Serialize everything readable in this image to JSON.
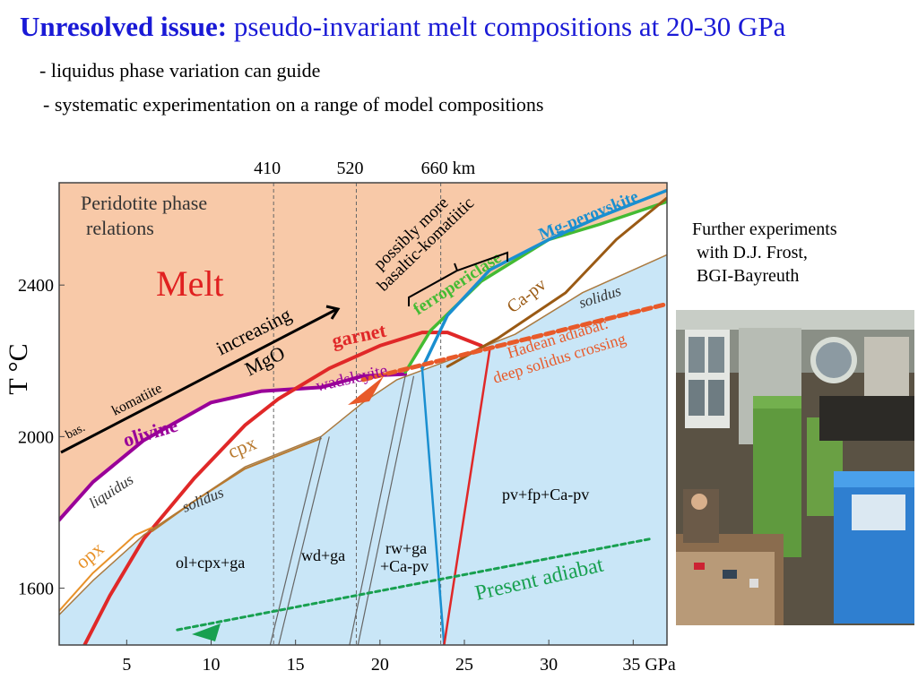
{
  "slide": {
    "title_bold": "Unresolved issue:",
    "title_rest": " pseudo-invariant melt compositions at 20-30 GPa",
    "bullets": [
      "- liquidus phase variation can guide",
      "- systematic experimentation on a range of model compositions"
    ],
    "credit_lines": [
      "Further experiments",
      " with D.J. Frost,",
      " BGI-Bayreuth"
    ]
  },
  "chart_data": {
    "type": "phase_diagram",
    "title": "Peridotite phase relations",
    "title_lines": [
      "Peridotite phase",
      "relations"
    ],
    "ylabel": "T °C",
    "xlim": [
      1,
      37
    ],
    "ylim": [
      1450,
      2670
    ],
    "x_ticks": [
      {
        "value": 5,
        "label": "5"
      },
      {
        "value": 10,
        "label": "10"
      },
      {
        "value": 15,
        "label": "15"
      },
      {
        "value": 20,
        "label": "20"
      },
      {
        "value": 25,
        "label": "25"
      },
      {
        "value": 30,
        "label": "30"
      },
      {
        "value": 35,
        "label": "35 GPa"
      }
    ],
    "y_ticks": [
      {
        "value": 1600,
        "label": "1600"
      },
      {
        "value": 2000,
        "label": "2000"
      },
      {
        "value": 2400,
        "label": "2400"
      }
    ],
    "depth_markers": [
      {
        "pressure": 13.7,
        "label": "410"
      },
      {
        "pressure": 18.6,
        "label": "520"
      },
      {
        "pressure": 23.6,
        "label": "660 km"
      }
    ],
    "colors": {
      "melt_region": "#f8c9a8",
      "subsolidus_region": "#c9e6f7",
      "olivine": "#990099",
      "garnet": "#e02828",
      "cpx": "#b87a30",
      "opx": "#e8922a",
      "ferropericlase": "#44bb33",
      "mg_perovskite": "#1a8fd0",
      "ca_pv": "#9a5a14",
      "hadean_adiabat": "#e85a2a",
      "present_adiabat": "#18a050",
      "melt_label": "#e02020"
    },
    "curves": [
      {
        "name": "liquidus",
        "color": "#990099",
        "points": [
          [
            1,
            1780
          ],
          [
            3,
            1880
          ],
          [
            6,
            1990
          ],
          [
            10,
            2090
          ],
          [
            13,
            2120
          ],
          [
            16.5,
            2130
          ],
          [
            19,
            2160
          ],
          [
            21.5,
            2165
          ]
        ]
      },
      {
        "name": "garnet",
        "color": "#e02828",
        "points": [
          [
            2.5,
            1450
          ],
          [
            4,
            1580
          ],
          [
            6,
            1730
          ],
          [
            9,
            1890
          ],
          [
            12,
            2030
          ],
          [
            14,
            2100
          ],
          [
            17,
            2180
          ],
          [
            20,
            2240
          ],
          [
            22.5,
            2275
          ],
          [
            24,
            2275
          ],
          [
            26,
            2240
          ]
        ]
      },
      {
        "name": "solidus",
        "color": "#aa7a40",
        "points": [
          [
            1,
            1530
          ],
          [
            3,
            1620
          ],
          [
            6,
            1740
          ],
          [
            9,
            1830
          ],
          [
            12,
            1920
          ],
          [
            16.5,
            2000
          ],
          [
            19,
            2090
          ],
          [
            21,
            2150
          ],
          [
            24,
            2200
          ],
          [
            28,
            2270
          ],
          [
            32,
            2380
          ],
          [
            37,
            2480
          ]
        ]
      },
      {
        "name": "cpx",
        "color": "#b87a30",
        "points": [
          [
            6.5,
            1750
          ],
          [
            9,
            1830
          ],
          [
            12,
            1915
          ],
          [
            16.5,
            1995
          ]
        ]
      },
      {
        "name": "opx",
        "color": "#e8922a",
        "points": [
          [
            1,
            1540
          ],
          [
            3,
            1640
          ],
          [
            5.5,
            1740
          ],
          [
            6.5,
            1760
          ]
        ]
      },
      {
        "name": "ferropericlase",
        "color": "#44bb33",
        "points": [
          [
            21.5,
            2170
          ],
          [
            23,
            2280
          ],
          [
            26,
            2410
          ],
          [
            30,
            2520
          ],
          [
            33,
            2560
          ],
          [
            37,
            2620
          ]
        ]
      },
      {
        "name": "Mg-perovskite",
        "color": "#1a8fd0",
        "points": [
          [
            22.5,
            2180
          ],
          [
            24,
            2320
          ],
          [
            26.5,
            2440
          ],
          [
            30,
            2520
          ],
          [
            33,
            2580
          ],
          [
            37,
            2650
          ]
        ]
      },
      {
        "name": "Ca-pv",
        "color": "#9a5a14",
        "points": [
          [
            24,
            2185
          ],
          [
            27,
            2260
          ],
          [
            31,
            2380
          ],
          [
            34,
            2520
          ],
          [
            37,
            2630
          ]
        ]
      },
      {
        "name": "olivine-wadsleyite boundary",
        "color": "#666666",
        "points": [
          [
            13.5,
            1450
          ],
          [
            16.5,
            2000
          ]
        ]
      },
      {
        "name": "wadsleyite-ringwoodite boundary",
        "color": "#666666",
        "points": [
          [
            18.2,
            1450
          ],
          [
            21.5,
            2160
          ]
        ]
      },
      {
        "name": "ringwoodite-perovskite boundary",
        "color": "#1a8fd0",
        "points": [
          [
            23.8,
            1450
          ],
          [
            22.5,
            2180
          ]
        ]
      },
      {
        "name": "garnet-perovskite boundary",
        "color": "#e02828",
        "points": [
          [
            23.8,
            1450
          ],
          [
            26.5,
            2230
          ]
        ]
      },
      {
        "name": "Hadean adiabat",
        "color": "#e85a2a",
        "dashed": true,
        "points": [
          [
            19,
            2150
          ],
          [
            37,
            2350
          ]
        ]
      },
      {
        "name": "Present adiabat",
        "color": "#18a050",
        "dashed": true,
        "points": [
          [
            8,
            1490
          ],
          [
            36,
            1730
          ]
        ]
      }
    ],
    "labels": {
      "melt": "Melt",
      "olivine": "olivine",
      "garnet": "garnet",
      "wadsleyite": "wadsleyite",
      "cpx": "cpx",
      "opx": "opx",
      "liquidus": "liquidus",
      "solidus_low": "solidus",
      "solidus_high": "solidus",
      "ferropericlase": "ferropericlase",
      "mg_perovskite": "Mg-perovskite",
      "ca_pv": "Ca-pv",
      "bas": "bas.",
      "komatiite": "komatiite",
      "increasing": "increasing",
      "mgo": "MgO",
      "possibly_more_1": "possibly more",
      "possibly_more_2": "basaltic-komatiitic",
      "hadean_1": "Hadean adiabat:",
      "hadean_2": "deep solidus crossing",
      "present_adiabat": "Present adiabat",
      "field_ol_cpx_ga": "ol+cpx+ga",
      "field_wd_ga": "wd+ga",
      "field_rw_ga": "rw+ga",
      "field_ca_pv": "+Ca-pv",
      "field_pv_fp_capv": "pv+fp+Ca-pv"
    }
  }
}
